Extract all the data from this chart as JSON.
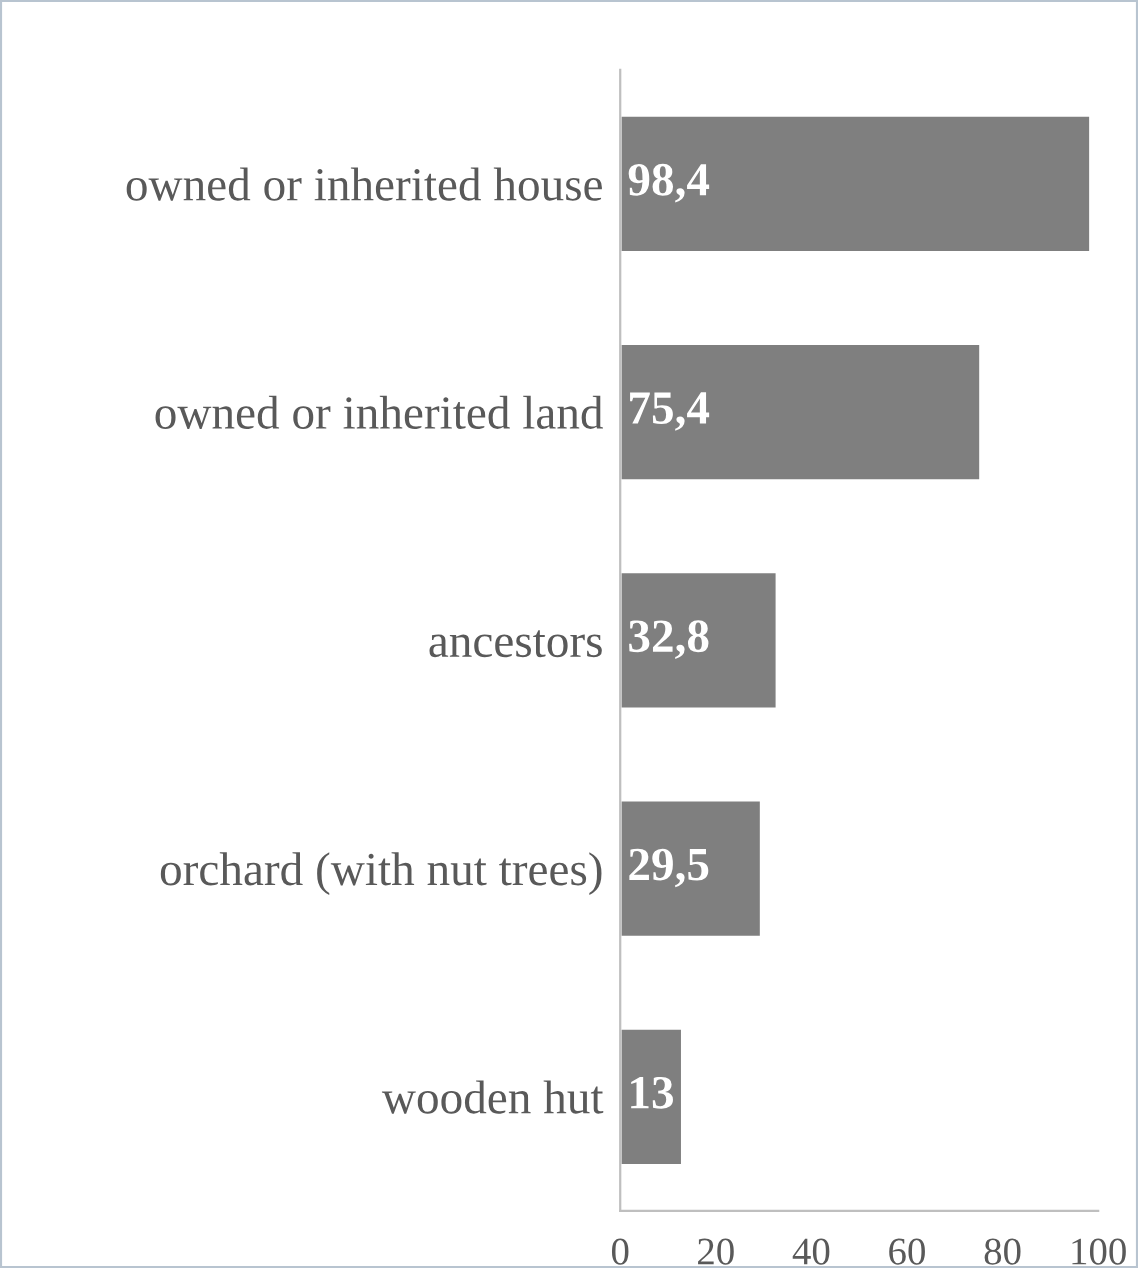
{
  "chart_data": {
    "type": "bar",
    "orientation": "horizontal",
    "categories": [
      "owned or inherited house",
      "owned or inherited land",
      "ancestors",
      "orchard (with nut trees)",
      "wooden hut"
    ],
    "values": [
      98.4,
      75.4,
      32.8,
      29.5,
      13
    ],
    "value_labels": [
      "98,4",
      "75,4",
      "32,8",
      "29,5",
      "13"
    ],
    "color": "#7f7f7f",
    "xlim": [
      0,
      100
    ],
    "xticks": [
      0,
      20,
      40,
      60,
      80,
      100
    ],
    "grid": false,
    "legend": false
  }
}
